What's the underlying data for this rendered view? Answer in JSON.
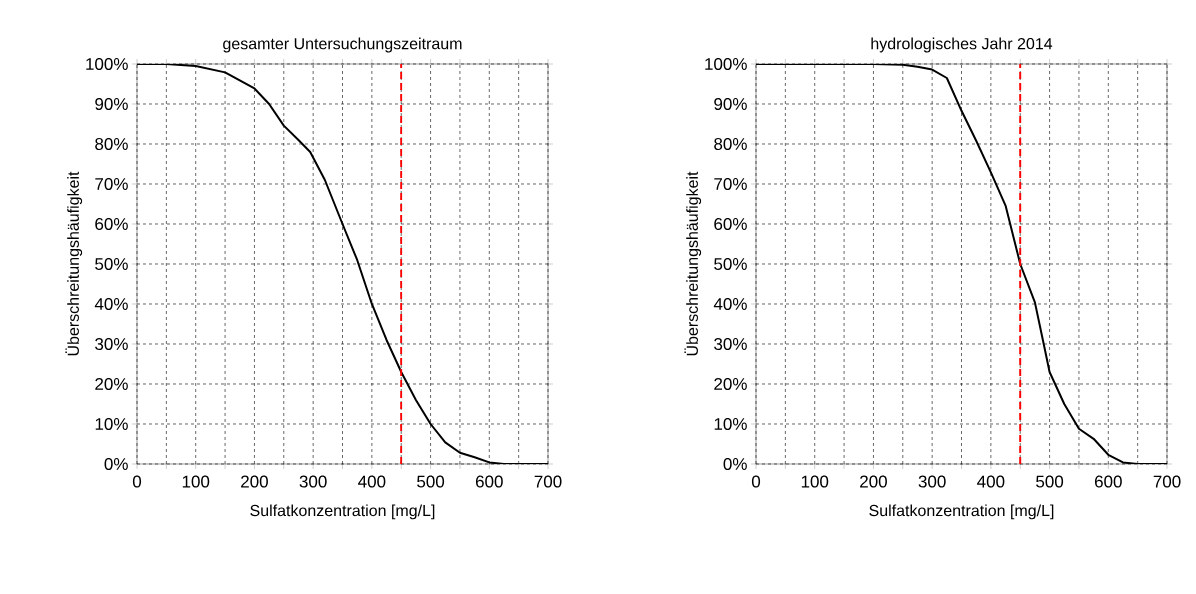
{
  "chart_data": [
    {
      "type": "line",
      "title": "gesamter Untersuchungszeitraum",
      "xlabel": "Sulfatkonzentration [mg/L]",
      "ylabel": "Überschreitungshäufigkeit",
      "series": [
        {
          "color": "#000000",
          "line_style": "solid",
          "x": [
            0,
            50,
            100,
            150,
            200,
            225,
            250,
            275,
            295,
            320,
            350,
            375,
            400,
            425,
            450,
            475,
            500,
            525,
            550,
            575,
            600,
            625,
            700
          ],
          "values": [
            100,
            100,
            99.5,
            97.9,
            93.9,
            90,
            84.6,
            81,
            78,
            71,
            60,
            51,
            40,
            31,
            23,
            16,
            10,
            5.4,
            2.8,
            1.7,
            0.4,
            0,
            0
          ]
        }
      ],
      "xlim": [
        0,
        700
      ],
      "ylim": [
        0,
        100
      ],
      "xticks": [
        0,
        {
          "value": 50,
          "label": null
        },
        100,
        {
          "value": 150,
          "label": null
        },
        200,
        {
          "value": 250,
          "label": null
        },
        300,
        {
          "value": 350,
          "label": null
        },
        400,
        {
          "value": 450,
          "label": null
        },
        500,
        {
          "value": 550,
          "label": null
        },
        600,
        {
          "value": 650,
          "label": null
        },
        700
      ],
      "yticks": [
        {
          "value": 0,
          "label": "0%"
        },
        {
          "value": 10,
          "label": "10%"
        },
        {
          "value": 20,
          "label": "20%"
        },
        {
          "value": 30,
          "label": "30%"
        },
        {
          "value": 40,
          "label": "40%"
        },
        {
          "value": 50,
          "label": "50%"
        },
        {
          "value": 60,
          "label": "60%"
        },
        {
          "value": 70,
          "label": "70%"
        },
        {
          "value": 80,
          "label": "80%"
        },
        {
          "value": 90,
          "label": "90%"
        },
        {
          "value": 100,
          "label": "100%"
        }
      ],
      "grid": true,
      "marker": "none",
      "ref_lines": [
        {
          "axis": "x",
          "value": 450,
          "color": "#ff0000",
          "line_style": "dashed"
        }
      ]
    },
    {
      "type": "line",
      "title": "hydrologisches Jahr 2014",
      "xlabel": "Sulfatkonzentration [mg/L]",
      "ylabel": "Überschreitungshäufigkeit",
      "series": [
        {
          "color": "#000000",
          "line_style": "solid",
          "x": [
            0,
            100,
            200,
            250,
            275,
            300,
            325,
            350,
            375,
            400,
            425,
            450,
            475,
            490,
            500,
            525,
            550,
            575,
            600,
            625,
            650,
            700
          ],
          "values": [
            100,
            100,
            100,
            99.8,
            99.3,
            98.6,
            96.5,
            88.3,
            80.8,
            72.9,
            64.6,
            50,
            40.4,
            30,
            23,
            15,
            8.8,
            6.3,
            2.3,
            0.4,
            0,
            0
          ]
        }
      ],
      "xlim": [
        0,
        700
      ],
      "ylim": [
        0,
        100
      ],
      "xticks": [
        0,
        {
          "value": 50,
          "label": null
        },
        100,
        {
          "value": 150,
          "label": null
        },
        200,
        {
          "value": 250,
          "label": null
        },
        300,
        {
          "value": 350,
          "label": null
        },
        400,
        {
          "value": 450,
          "label": null
        },
        500,
        {
          "value": 550,
          "label": null
        },
        600,
        {
          "value": 650,
          "label": null
        },
        700
      ],
      "yticks": [
        {
          "value": 0,
          "label": "0%"
        },
        {
          "value": 10,
          "label": "10%"
        },
        {
          "value": 20,
          "label": "20%"
        },
        {
          "value": 30,
          "label": "30%"
        },
        {
          "value": 40,
          "label": "40%"
        },
        {
          "value": 50,
          "label": "50%"
        },
        {
          "value": 60,
          "label": "60%"
        },
        {
          "value": 70,
          "label": "70%"
        },
        {
          "value": 80,
          "label": "80%"
        },
        {
          "value": 90,
          "label": "90%"
        },
        {
          "value": 100,
          "label": "100%"
        }
      ],
      "grid": true,
      "marker": "none",
      "ref_lines": [
        {
          "axis": "x",
          "value": 450,
          "color": "#ff0000",
          "line_style": "dashed"
        }
      ]
    }
  ]
}
